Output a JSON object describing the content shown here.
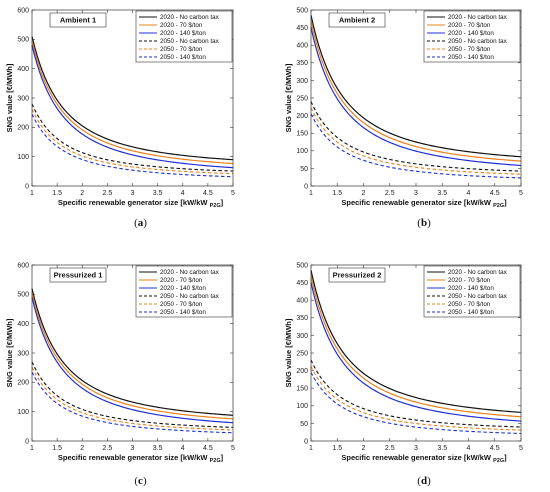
{
  "colors": {
    "2020": "#111111",
    "70": "#e8821e",
    "140": "#1f2fd6"
  },
  "chart_data": [
    {
      "type": "line",
      "caption_letter": "a",
      "title": "Ambient 1",
      "xlabel": "Specific renewable generator size [kW/kW",
      "xlabel_sub": "P2G",
      "xlabel_end": "]",
      "ylabel": "SNG value [€/MWh]",
      "xlim": [
        1,
        5
      ],
      "ylim": [
        0,
        600
      ],
      "xticks": [
        "1",
        "1.5",
        "2",
        "2.5",
        "3",
        "3.5",
        "4",
        "4.5",
        "5"
      ],
      "yticks": [
        "0",
        "100",
        "200",
        "300",
        "400",
        "500",
        "600"
      ],
      "series": [
        {
          "name": "2020 - No carbon tax",
          "color": "#111111",
          "dash": false,
          "start": 510,
          "asym": 55
        },
        {
          "name": "2020 - 70 $/ton",
          "color": "#e8821e",
          "dash": false,
          "start": 495,
          "asym": 42
        },
        {
          "name": "2020 - 140 $/ton",
          "color": "#1f2fd6",
          "dash": false,
          "start": 480,
          "asym": 28
        },
        {
          "name": "2050 - No carbon tax",
          "color": "#111111",
          "dash": true,
          "start": 280,
          "asym": 32
        },
        {
          "name": "2050 - 70 $/ton",
          "color": "#e8821e",
          "dash": true,
          "start": 262,
          "asym": 24
        },
        {
          "name": "2050 - 140 $/ton",
          "color": "#1f2fd6",
          "dash": true,
          "start": 245,
          "asym": 14
        }
      ]
    },
    {
      "type": "line",
      "caption_letter": "b",
      "title": "Ambient 2",
      "xlabel": "Specific renewable generator size [kW/kW",
      "xlabel_sub": "P2G",
      "xlabel_end": "]",
      "ylabel": "SNG value [€/MWh]",
      "xlim": [
        1,
        5
      ],
      "ylim": [
        0,
        500
      ],
      "xticks": [
        "1",
        "1.5",
        "2",
        "2.5",
        "3",
        "3.5",
        "4",
        "4.5",
        "5"
      ],
      "yticks": [
        "0",
        "50",
        "100",
        "150",
        "200",
        "250",
        "300",
        "350",
        "400",
        "450",
        "500"
      ],
      "series": [
        {
          "name": "2020 - No carbon tax",
          "color": "#111111",
          "dash": false,
          "start": 485,
          "asym": 50
        },
        {
          "name": "2020 - 70 $/ton",
          "color": "#e8821e",
          "dash": false,
          "start": 468,
          "asym": 38
        },
        {
          "name": "2020 - 140 $/ton",
          "color": "#1f2fd6",
          "dash": false,
          "start": 450,
          "asym": 26
        },
        {
          "name": "2050 - No carbon tax",
          "color": "#111111",
          "dash": true,
          "start": 240,
          "asym": 26
        },
        {
          "name": "2050 - 70 $/ton",
          "color": "#e8821e",
          "dash": true,
          "start": 222,
          "asym": 18
        },
        {
          "name": "2050 - 140 $/ton",
          "color": "#1f2fd6",
          "dash": true,
          "start": 205,
          "asym": 8
        }
      ]
    },
    {
      "type": "line",
      "caption_letter": "c",
      "title": "Pressurized 1",
      "xlabel": "Specific renewable generator size [kW/kW",
      "xlabel_sub": "P2G",
      "xlabel_end": "]",
      "ylabel": "SNG value [€/MWh]",
      "xlim": [
        1,
        5
      ],
      "ylim": [
        0,
        600
      ],
      "xticks": [
        "1",
        "1.5",
        "2",
        "2.5",
        "3",
        "3.5",
        "4",
        "4.5",
        "5"
      ],
      "yticks": [
        "0",
        "100",
        "200",
        "300",
        "400",
        "500",
        "600"
      ],
      "series": [
        {
          "name": "2020 - No carbon tax",
          "color": "#111111",
          "dash": false,
          "start": 520,
          "asym": 52
        },
        {
          "name": "2020 - 70 $/ton",
          "color": "#e8821e",
          "dash": false,
          "start": 505,
          "asym": 40
        },
        {
          "name": "2020 - 140 $/ton",
          "color": "#1f2fd6",
          "dash": false,
          "start": 490,
          "asym": 27
        },
        {
          "name": "2050 - No carbon tax",
          "color": "#111111",
          "dash": true,
          "start": 270,
          "asym": 28
        },
        {
          "name": "2050 - 70 $/ton",
          "color": "#e8821e",
          "dash": true,
          "start": 252,
          "asym": 20
        },
        {
          "name": "2050 - 140 $/ton",
          "color": "#1f2fd6",
          "dash": true,
          "start": 235,
          "asym": 11
        }
      ]
    },
    {
      "type": "line",
      "caption_letter": "d",
      "title": "Pressurized 2",
      "xlabel": "Specific renewable generator size [kW/kW",
      "xlabel_sub": "P2G",
      "xlabel_end": "]",
      "ylabel": "SNG value [€/MWh]",
      "xlim": [
        1,
        5
      ],
      "ylim": [
        0,
        500
      ],
      "xticks": [
        "1",
        "1.5",
        "2",
        "2.5",
        "3",
        "3.5",
        "4",
        "4.5",
        "5"
      ],
      "yticks": [
        "0",
        "50",
        "100",
        "150",
        "200",
        "250",
        "300",
        "350",
        "400",
        "450",
        "500"
      ],
      "series": [
        {
          "name": "2020 - No carbon tax",
          "color": "#111111",
          "dash": false,
          "start": 485,
          "asym": 48
        },
        {
          "name": "2020 - 70 $/ton",
          "color": "#e8821e",
          "dash": false,
          "start": 468,
          "asym": 36
        },
        {
          "name": "2020 - 140 $/ton",
          "color": "#1f2fd6",
          "dash": false,
          "start": 450,
          "asym": 24
        },
        {
          "name": "2050 - No carbon tax",
          "color": "#111111",
          "dash": true,
          "start": 230,
          "asym": 24
        },
        {
          "name": "2050 - 70 $/ton",
          "color": "#e8821e",
          "dash": true,
          "start": 212,
          "asym": 16
        },
        {
          "name": "2050 - 140 $/ton",
          "color": "#1f2fd6",
          "dash": true,
          "start": 195,
          "asym": 7
        }
      ]
    }
  ]
}
